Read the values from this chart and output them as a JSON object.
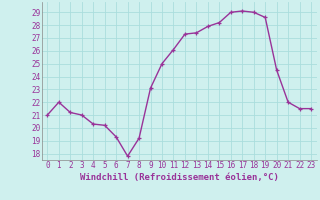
{
  "x": [
    0,
    1,
    2,
    3,
    4,
    5,
    6,
    7,
    8,
    9,
    10,
    11,
    12,
    13,
    14,
    15,
    16,
    17,
    18,
    19,
    20,
    21,
    22,
    23
  ],
  "y": [
    21.0,
    22.0,
    21.2,
    21.0,
    20.3,
    20.2,
    19.3,
    17.8,
    19.2,
    23.1,
    25.0,
    26.1,
    27.3,
    27.4,
    27.9,
    28.2,
    29.0,
    29.1,
    29.0,
    28.6,
    24.5,
    22.0,
    21.5,
    21.5
  ],
  "line_color": "#993399",
  "marker": "+",
  "marker_size": 3,
  "bg_color": "#cff0ee",
  "grid_color": "#aadddd",
  "xlabel": "Windchill (Refroidissement éolien,°C)",
  "xlabel_fontsize": 6.5,
  "ylim": [
    17.5,
    29.8
  ],
  "yticks": [
    18,
    19,
    20,
    21,
    22,
    23,
    24,
    25,
    26,
    27,
    28,
    29
  ],
  "xticks": [
    0,
    1,
    2,
    3,
    4,
    5,
    6,
    7,
    8,
    9,
    10,
    11,
    12,
    13,
    14,
    15,
    16,
    17,
    18,
    19,
    20,
    21,
    22,
    23
  ],
  "tick_fontsize": 5.5,
  "line_width": 1.0
}
